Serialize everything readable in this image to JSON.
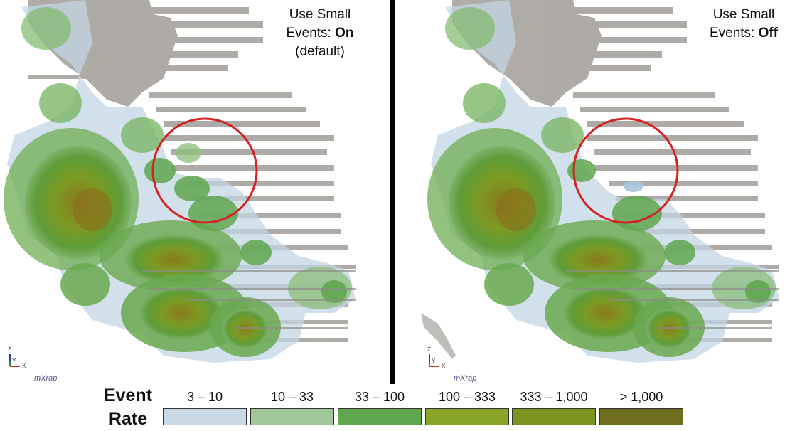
{
  "panels": [
    {
      "caption_line1": "Use Small",
      "caption_line2_prefix": "Events: ",
      "caption_state": "On",
      "caption_line3": "(default)"
    },
    {
      "caption_line1": "Use Small",
      "caption_line2_prefix": "Events: ",
      "caption_state": "Off",
      "caption_line3": ""
    }
  ],
  "axes": {
    "z": "Z",
    "y": "Y",
    "x": "X"
  },
  "brand": "mXrap",
  "legend": {
    "title_line1": "Event",
    "title_line2": "Rate",
    "items": [
      {
        "label": "3 – 10",
        "color": "#c9d9e6"
      },
      {
        "label": "10 – 33",
        "color": "#9fc79a"
      },
      {
        "label": "33 – 100",
        "color": "#5fa64e"
      },
      {
        "label": "100 – 333",
        "color": "#8aa62a"
      },
      {
        "label": "333 – 1,000",
        "color": "#7a941e"
      },
      {
        "label": "> 1,000",
        "color": "#6f6e1e"
      }
    ]
  },
  "colors": {
    "highlight_circle": "#d42020",
    "stopes": "#9c9a96",
    "iso_outer": "#b9d0e0"
  }
}
